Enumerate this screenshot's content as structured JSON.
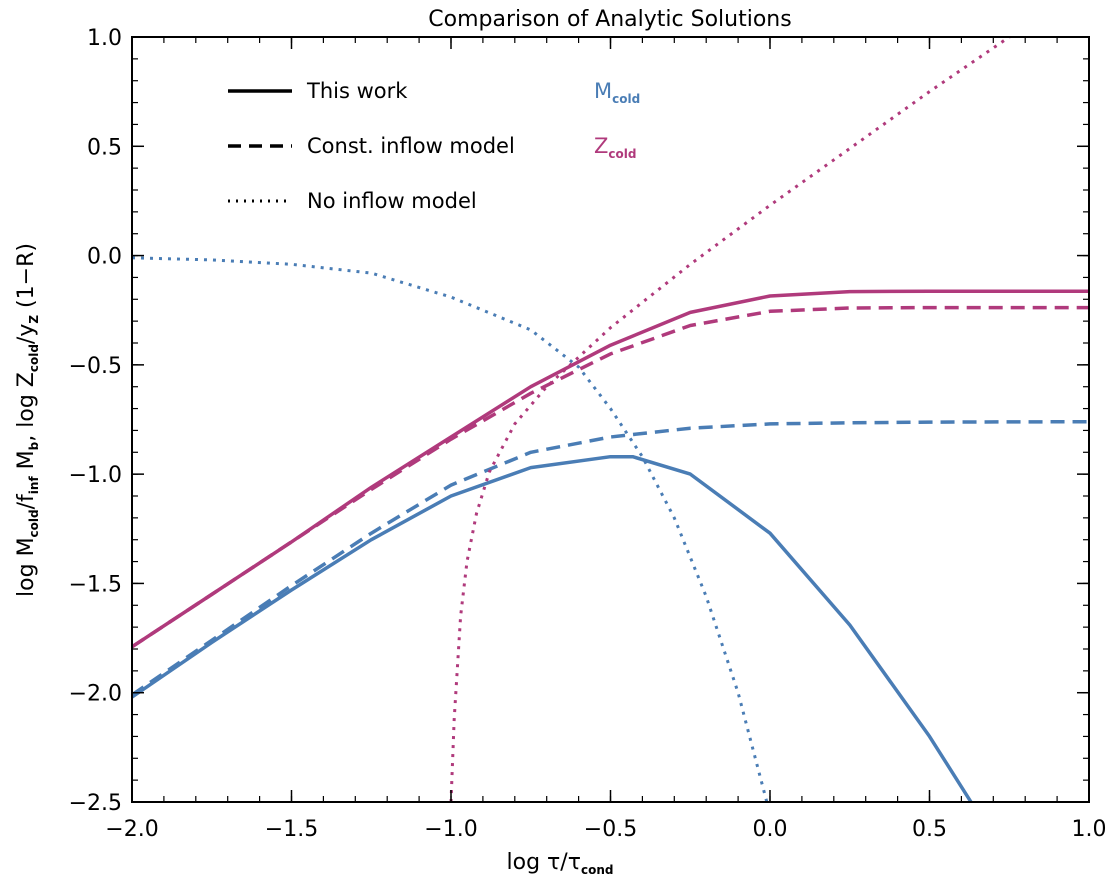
{
  "chart_data": {
    "type": "line",
    "title": "Comparison of Analytic Solutions",
    "xlabel": {
      "main": "log τ/τ",
      "sub": "cond"
    },
    "ylabel": {
      "p1": "log M",
      "s1": "cold",
      "p2": "/f",
      "s2": "inf",
      "p3": " M",
      "s3": "b",
      "p4": ", log Z",
      "s4": "cold",
      "p5": "/y",
      "s5": "Z",
      "p6": " (1−R)"
    },
    "xlim": [
      -2.0,
      1.0
    ],
    "ylim": [
      -2.5,
      1.0
    ],
    "xticks": [
      -2.0,
      -1.5,
      -1.0,
      -0.5,
      0.0,
      0.5,
      1.0
    ],
    "xtick_labels": [
      "−2.0",
      "−1.5",
      "−1.0",
      "−0.5",
      "0.0",
      "0.5",
      "1.0"
    ],
    "yticks": [
      1.0,
      0.5,
      0.0,
      -0.5,
      -1.0,
      -1.5,
      -2.0,
      -2.5
    ],
    "ytick_labels": [
      "1.0",
      "0.5",
      "0.0",
      "−0.5",
      "−1.0",
      "−1.5",
      "−2.0",
      "−2.5"
    ],
    "grid": false,
    "legend_placement": "top-left",
    "legend_styles": [
      {
        "label": "This work",
        "dash": "solid"
      },
      {
        "label": "Const. inflow model",
        "dash": "dashed"
      },
      {
        "label": "No inflow model",
        "dash": "dotted"
      }
    ],
    "legend_colors": [
      {
        "main": "M",
        "sub": "cold",
        "color": "#4a7db5"
      },
      {
        "main": "Z",
        "sub": "cold",
        "color": "#b03a7c"
      }
    ],
    "series": [
      {
        "quantity": "M_cold",
        "model": "This work",
        "dash": "solid",
        "color": "#4a7db5",
        "x": [
          -2.0,
          -1.75,
          -1.5,
          -1.25,
          -1.0,
          -0.75,
          -0.5,
          -0.43,
          -0.25,
          0.0,
          0.25,
          0.5,
          0.63
        ],
        "y": [
          -2.02,
          -1.77,
          -1.53,
          -1.3,
          -1.1,
          -0.97,
          -0.92,
          -0.92,
          -1.0,
          -1.27,
          -1.69,
          -2.2,
          -2.5
        ]
      },
      {
        "quantity": "M_cold",
        "model": "Const. inflow model",
        "dash": "dashed",
        "color": "#4a7db5",
        "x": [
          -2.0,
          -1.75,
          -1.5,
          -1.25,
          -1.0,
          -0.75,
          -0.5,
          -0.25,
          0.0,
          0.25,
          0.5,
          0.75,
          1.0
        ],
        "y": [
          -2.01,
          -1.76,
          -1.51,
          -1.27,
          -1.05,
          -0.9,
          -0.83,
          -0.79,
          -0.77,
          -0.765,
          -0.762,
          -0.761,
          -0.76
        ]
      },
      {
        "quantity": "M_cold",
        "model": "No inflow model",
        "dash": "dotted",
        "color": "#4a7db5",
        "x": [
          -2.0,
          -1.75,
          -1.5,
          -1.25,
          -1.0,
          -0.75,
          -0.6,
          -0.5,
          -0.4,
          -0.3,
          -0.2,
          -0.1,
          -0.01
        ],
        "y": [
          -0.01,
          -0.02,
          -0.04,
          -0.08,
          -0.19,
          -0.34,
          -0.51,
          -0.7,
          -0.92,
          -1.2,
          -1.56,
          -2.0,
          -2.5
        ]
      },
      {
        "quantity": "Z_cold",
        "model": "This work",
        "dash": "solid",
        "color": "#b03a7c",
        "x": [
          -2.0,
          -1.75,
          -1.5,
          -1.25,
          -1.0,
          -0.75,
          -0.5,
          -0.25,
          0.0,
          0.25,
          0.5,
          0.75,
          1.0
        ],
        "y": [
          -1.79,
          -1.55,
          -1.31,
          -1.06,
          -0.83,
          -0.6,
          -0.41,
          -0.26,
          -0.185,
          -0.165,
          -0.163,
          -0.163,
          -0.163
        ]
      },
      {
        "quantity": "Z_cold",
        "model": "Const. inflow model",
        "dash": "dashed",
        "color": "#b03a7c",
        "x": [
          -2.0,
          -1.75,
          -1.5,
          -1.25,
          -1.0,
          -0.75,
          -0.5,
          -0.25,
          0.0,
          0.25,
          0.5,
          0.75,
          1.0
        ],
        "y": [
          -1.79,
          -1.55,
          -1.31,
          -1.07,
          -0.84,
          -0.63,
          -0.45,
          -0.32,
          -0.255,
          -0.24,
          -0.238,
          -0.238,
          -0.238
        ]
      },
      {
        "quantity": "Z_cold",
        "model": "No inflow model",
        "dash": "dotted",
        "color": "#b03a7c",
        "x": [
          -1.0,
          -0.99,
          -0.97,
          -0.95,
          -0.92,
          -0.88,
          -0.8,
          -0.7,
          -0.5,
          -0.25,
          0.0,
          0.25,
          0.5,
          0.75,
          1.0
        ],
        "y": [
          -2.5,
          -2.12,
          -1.65,
          -1.4,
          -1.18,
          -0.99,
          -0.77,
          -0.6,
          -0.33,
          -0.04,
          0.23,
          0.49,
          0.75,
          1.0,
          1.26
        ]
      }
    ]
  }
}
